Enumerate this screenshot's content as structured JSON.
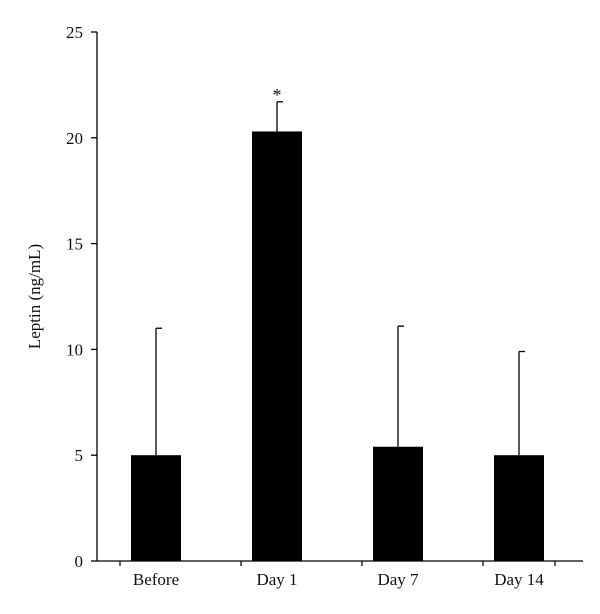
{
  "chart_data": {
    "type": "bar",
    "title": "",
    "xlabel": "",
    "ylabel": "Leptin (ng/mL)",
    "categories": [
      "Before",
      "Day 1",
      "Day 7",
      "Day 14"
    ],
    "values": [
      5.0,
      20.3,
      5.4,
      5.0
    ],
    "error_upper": [
      6.0,
      1.4,
      5.7,
      4.9
    ],
    "annotations": [
      "",
      "*",
      "",
      ""
    ],
    "ylim": [
      0,
      25
    ],
    "yticks": [
      0,
      5,
      10,
      15,
      20,
      25
    ],
    "grid": false,
    "colors": {
      "bar": "#000000",
      "axis": "#000000"
    }
  }
}
